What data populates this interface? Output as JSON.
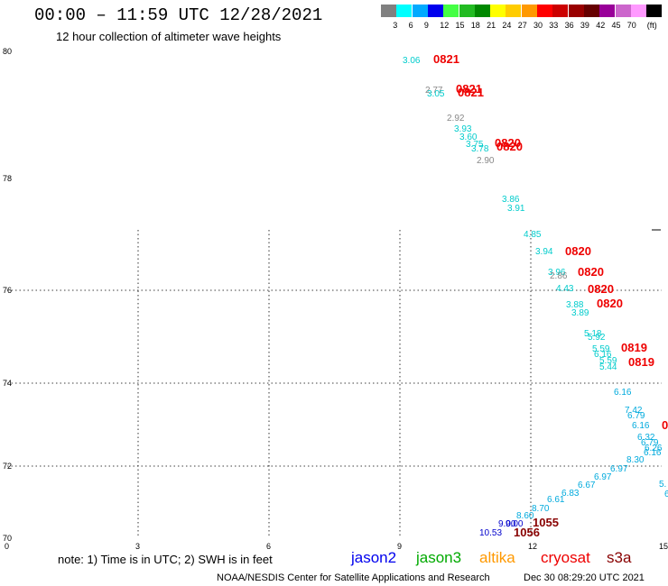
{
  "header": {
    "title": "00:00 – 11:59 UTC 12/28/2021",
    "subtitle": "12 hour collection of altimeter wave heights"
  },
  "colorbar": {
    "swatches": [
      "#808080",
      "#00ffff",
      "#00aaff",
      "#0000ee",
      "#44ff44",
      "#22bb22",
      "#008800",
      "#ffff00",
      "#ffcc00",
      "#ff9900",
      "#ff0000",
      "#cc0000",
      "#990000",
      "#660000",
      "#990099",
      "#cc66cc",
      "#ff99ff",
      "#000000"
    ],
    "labels": [
      "3",
      "6",
      "9",
      "12",
      "15",
      "18",
      "21",
      "24",
      "27",
      "30",
      "33",
      "36",
      "39",
      "42",
      "45",
      "70"
    ],
    "unit": "(ft)"
  },
  "axes": {
    "lat_labels": [
      "80",
      "78",
      "76",
      "74",
      "72",
      "70"
    ],
    "lon_labels": [
      "0",
      "3",
      "6",
      "9",
      "12",
      "15"
    ]
  },
  "observations": [
    {
      "text": "3.06",
      "color": "#00cccc",
      "size": "small"
    },
    {
      "text": "0821",
      "color": "#ee0000",
      "size": "big"
    },
    {
      "text": "2.77",
      "color": "#888888",
      "size": "small"
    },
    {
      "text": "3.05",
      "color": "#00cccc",
      "size": "small"
    },
    {
      "text": "0821",
      "color": "#ee0000",
      "size": "big"
    },
    {
      "text": "0821",
      "color": "#ee0000",
      "size": "big"
    },
    {
      "text": "2.92",
      "color": "#888888",
      "size": "small"
    },
    {
      "text": "3.93",
      "color": "#00cccc",
      "size": "small"
    },
    {
      "text": "3.60",
      "color": "#00cccc",
      "size": "small"
    },
    {
      "text": "3.75",
      "color": "#00cccc",
      "size": "small"
    },
    {
      "text": "3.78",
      "color": "#00cccc",
      "size": "small"
    },
    {
      "text": "0820",
      "color": "#ee0000",
      "size": "big"
    },
    {
      "text": "0820",
      "color": "#ee0000",
      "size": "big"
    },
    {
      "text": "2.90",
      "color": "#888888",
      "size": "small"
    },
    {
      "text": "3.86",
      "color": "#00cccc",
      "size": "small"
    },
    {
      "text": "3.91",
      "color": "#00cccc",
      "size": "small"
    },
    {
      "text": "4.85",
      "color": "#00cccc",
      "size": "small"
    },
    {
      "text": "3.94",
      "color": "#00cccc",
      "size": "small"
    },
    {
      "text": "0820",
      "color": "#ee0000",
      "size": "big"
    },
    {
      "text": "3.96",
      "color": "#00cccc",
      "size": "small"
    },
    {
      "text": "2.86",
      "color": "#888888",
      "size": "small"
    },
    {
      "text": "0820",
      "color": "#ee0000",
      "size": "big"
    },
    {
      "text": "4.43",
      "color": "#00cccc",
      "size": "small"
    },
    {
      "text": "0820",
      "color": "#ee0000",
      "size": "big"
    },
    {
      "text": "3.88",
      "color": "#00cccc",
      "size": "small"
    },
    {
      "text": "0820",
      "color": "#ee0000",
      "size": "big"
    },
    {
      "text": "3.89",
      "color": "#00cccc",
      "size": "small"
    },
    {
      "text": "5.18",
      "color": "#00cccc",
      "size": "small"
    },
    {
      "text": "5.92",
      "color": "#00cccc",
      "size": "small"
    },
    {
      "text": "5.59",
      "color": "#00cccc",
      "size": "small"
    },
    {
      "text": "0819",
      "color": "#ee0000",
      "size": "big"
    },
    {
      "text": "6.16",
      "color": "#00cccc",
      "size": "small"
    },
    {
      "text": "5.59",
      "color": "#00cccc",
      "size": "small"
    },
    {
      "text": "0819",
      "color": "#ee0000",
      "size": "big"
    },
    {
      "text": "5.44",
      "color": "#00cccc",
      "size": "small"
    },
    {
      "text": "6.16",
      "color": "#00aadd",
      "size": "small"
    },
    {
      "text": "7.42",
      "color": "#00aadd",
      "size": "small"
    },
    {
      "text": "6.79",
      "color": "#00aadd",
      "size": "small"
    },
    {
      "text": "6.16",
      "color": "#00aadd",
      "size": "small"
    },
    {
      "text": "0",
      "color": "#ee0000",
      "size": "big"
    },
    {
      "text": "6.32",
      "color": "#00aadd",
      "size": "small"
    },
    {
      "text": "6.79",
      "color": "#00aadd",
      "size": "small"
    },
    {
      "text": "6.26",
      "color": "#00aadd",
      "size": "small"
    },
    {
      "text": "6.16",
      "color": "#00aadd",
      "size": "small"
    },
    {
      "text": "8.30",
      "color": "#00aadd",
      "size": "small"
    },
    {
      "text": "6.97",
      "color": "#00aadd",
      "size": "small"
    },
    {
      "text": "6.97",
      "color": "#00aadd",
      "size": "small"
    },
    {
      "text": "6.67",
      "color": "#00aadd",
      "size": "small"
    },
    {
      "text": "6.83",
      "color": "#00aadd",
      "size": "small"
    },
    {
      "text": "6.61",
      "color": "#00aadd",
      "size": "small"
    },
    {
      "text": "8.70",
      "color": "#00aadd",
      "size": "small"
    },
    {
      "text": "8.60",
      "color": "#00aadd",
      "size": "small"
    },
    {
      "text": "9.00",
      "color": "#0000cc",
      "size": "small"
    },
    {
      "text": "9.00",
      "color": "#0000cc",
      "size": "small"
    },
    {
      "text": "1055",
      "color": "#880000",
      "size": "big"
    },
    {
      "text": "10.53",
      "color": "#0000cc",
      "size": "small"
    },
    {
      "text": "1056",
      "color": "#880000",
      "size": "big"
    },
    {
      "text": "5.",
      "color": "#00aadd",
      "size": "small"
    },
    {
      "text": "6",
      "color": "#00aadd",
      "size": "small"
    }
  ],
  "footer": {
    "note": "note: 1) Time is in UTC; 2) SWH is in feet",
    "missions": [
      {
        "name": "jason2",
        "color": "#0000ee"
      },
      {
        "name": "jason3",
        "color": "#00aa00"
      },
      {
        "name": "altika",
        "color": "#ff9900"
      },
      {
        "name": "cryosat",
        "color": "#ee0000"
      },
      {
        "name": "s3a",
        "color": "#880000"
      }
    ],
    "credit": "NOAA/NESDIS Center for Satellite Applications and Research",
    "timestamp": "Dec 30 08:29:20 UTC 2021"
  }
}
